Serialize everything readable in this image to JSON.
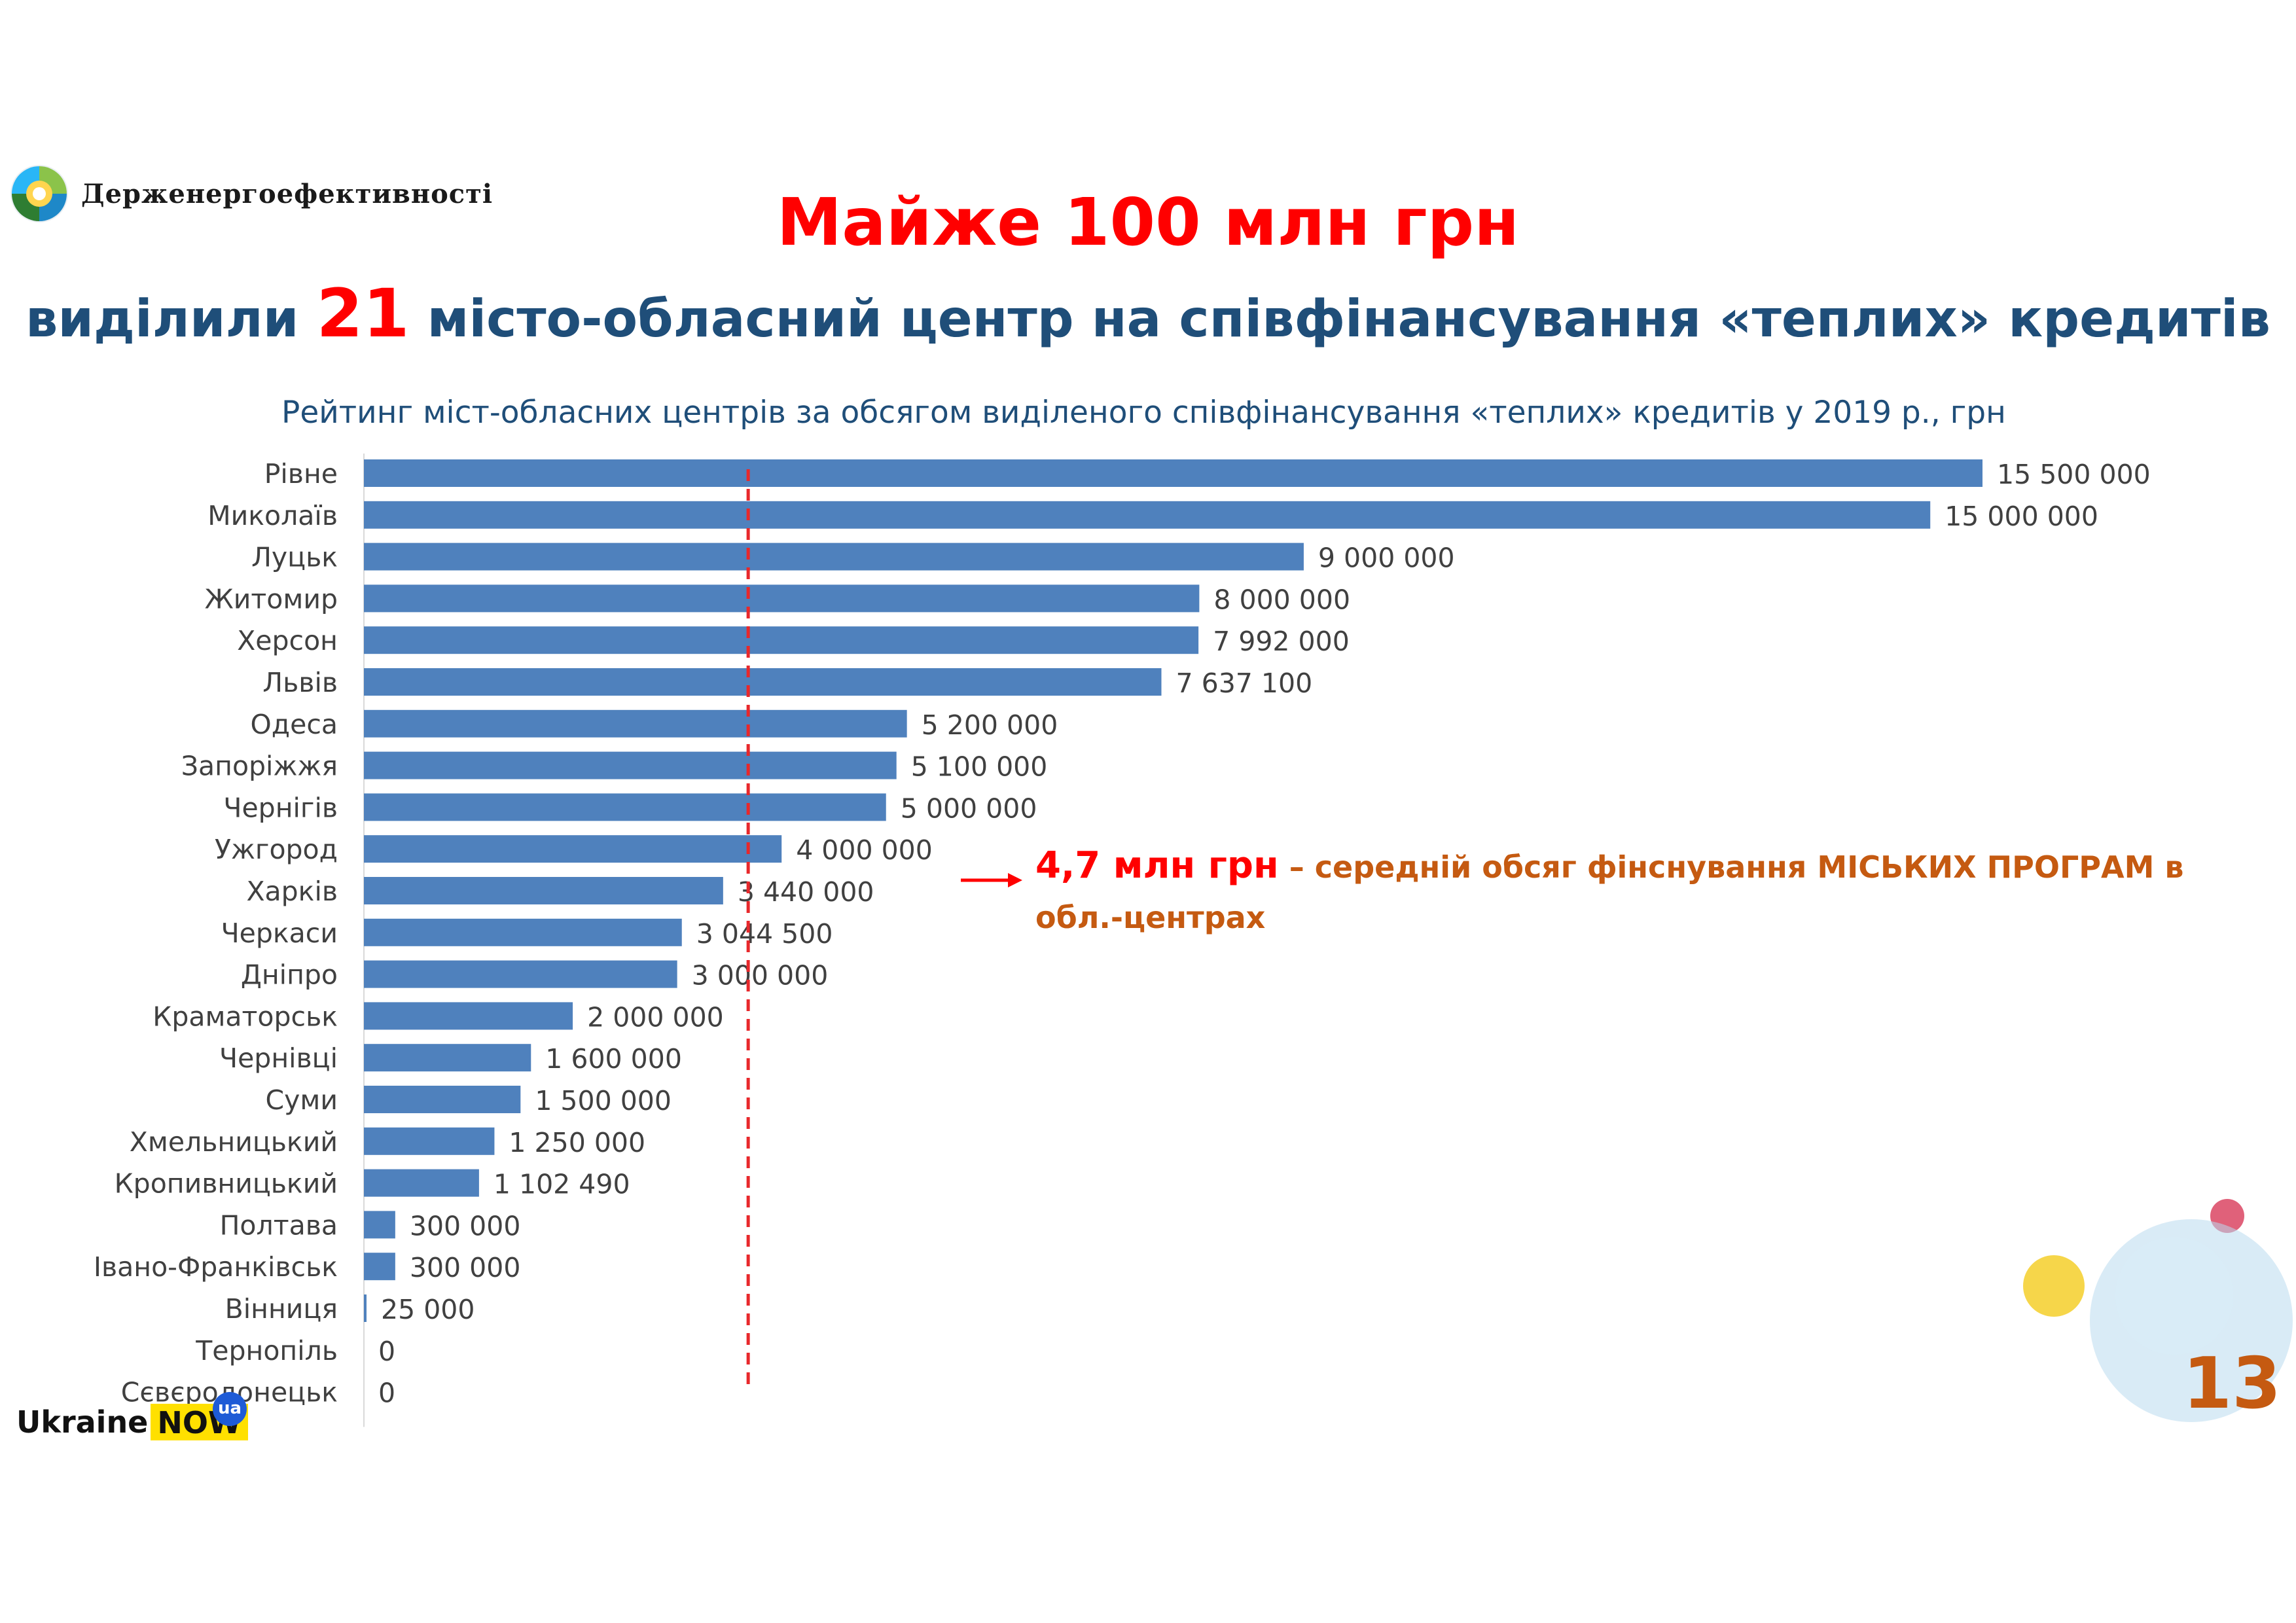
{
  "logo": {
    "name": "Держенергоефективності"
  },
  "title_line1": "Майже 100 млн грн",
  "title_line2": {
    "before": "виділили ",
    "highlight": "21",
    "after": " місто-обласний центр на співфінансування «теплих» кредитів"
  },
  "chart_data": {
    "type": "bar",
    "orientation": "horizontal",
    "title": "Рейтинг міст-обласних центрів за обсягом виділеного співфінансування «теплих» кредитів у 2019 р., грн",
    "categories": [
      "Рівне",
      "Миколаїв",
      "Луцьк",
      "Житомир",
      "Херсон",
      "Львів",
      "Одеса",
      "Запоріжжя",
      "Чернігів",
      "Ужгород",
      "Харків",
      "Черкаси",
      "Дніпро",
      "Краматорськ",
      "Чернівці",
      "Суми",
      "Хмельницький",
      "Кропивницький",
      "Полтава",
      "Івано-Франківськ",
      "Вінниця",
      "Тернопіль",
      "Сєвєродонецьк"
    ],
    "values": [
      15500000,
      15000000,
      9000000,
      8000000,
      7992000,
      7637100,
      5200000,
      5100000,
      5000000,
      4000000,
      3440000,
      3044500,
      3000000,
      2000000,
      1600000,
      1500000,
      1250000,
      1102490,
      300000,
      300000,
      25000,
      0,
      0
    ],
    "value_labels": [
      "15 500 000",
      "15 000 000",
      "9 000 000",
      "8 000 000",
      "7 992 000",
      "7 637 100",
      "5 200 000",
      "5 100 000",
      "5 000 000",
      "4 000 000",
      "3 440 000",
      "3 044 500",
      "3 000 000",
      "2 000 000",
      "1 600 000",
      "1 500 000",
      "1 250 000",
      "1 102 490",
      "300 000",
      "300 000",
      "25 000",
      "0",
      "0"
    ],
    "reference_line": {
      "value": 3680000,
      "style": "dashed",
      "color": "#e8282b"
    },
    "bar_color": "#4f81bd",
    "xlim": [
      0,
      15500000
    ],
    "grid": false,
    "legend": "none"
  },
  "annotation": {
    "value": "4,7 млн грн",
    "text": " – середній обсяг фінснування МІСЬКИХ ПРОГРАМ в обл.-центрах"
  },
  "footer": {
    "ukraine": "Ukraine",
    "now": "NOW",
    "ua_badge": "ua"
  },
  "page_number": "13",
  "colors": {
    "title_red": "#ff0000",
    "title_blue": "#1f4e79",
    "annotation_orange": "#c55a11",
    "bar": "#4f81bd",
    "dashed_line": "#e8282b"
  }
}
